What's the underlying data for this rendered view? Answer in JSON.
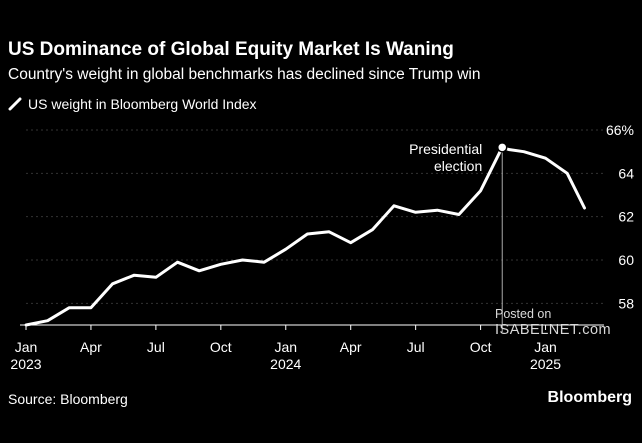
{
  "header": {
    "title": "US Dominance of Global Equity Market Is Waning",
    "subtitle": "Country's weight in global benchmarks has declined since Trump win"
  },
  "footer": {
    "source": "Source: Bloomberg",
    "brand": "Bloomberg"
  },
  "watermark": {
    "posted_on": "Posted on",
    "site": "ISABELNET.com"
  },
  "colors": {
    "background": "#000000",
    "line": "#ffffff",
    "grid": "#333333",
    "annotation_line": "#aaaaaa"
  },
  "chart_data": {
    "type": "line",
    "title": "US Dominance of Global Equity Market Is Waning",
    "subtitle": "Country's weight in global benchmarks has declined since Trump win",
    "xlabel": "",
    "ylabel": "",
    "ylim": [
      57,
      66
    ],
    "y_ticks": [
      58,
      60,
      62,
      64,
      66
    ],
    "y_tick_labels": [
      "58",
      "60",
      "62",
      "64",
      "66%"
    ],
    "grid": true,
    "legend": "top-left",
    "x_ticks": [
      {
        "m": 0,
        "label": "Jan",
        "sub": "2023"
      },
      {
        "m": 3,
        "label": "Apr",
        "sub": ""
      },
      {
        "m": 6,
        "label": "Jul",
        "sub": ""
      },
      {
        "m": 9,
        "label": "Oct",
        "sub": ""
      },
      {
        "m": 12,
        "label": "Jan",
        "sub": "2024"
      },
      {
        "m": 15,
        "label": "Apr",
        "sub": ""
      },
      {
        "m": 18,
        "label": "Jul",
        "sub": ""
      },
      {
        "m": 21,
        "label": "Oct",
        "sub": ""
      },
      {
        "m": 24,
        "label": "Jan",
        "sub": "2025"
      }
    ],
    "series": [
      {
        "name": "US weight in Bloomberg World Index",
        "x": [
          0,
          1,
          2,
          3,
          4,
          5,
          6,
          7,
          8,
          9,
          10,
          11,
          12,
          13,
          14,
          15,
          16,
          17,
          18,
          19,
          20,
          21,
          22,
          22.3,
          23,
          24,
          25,
          25.8
        ],
        "values": [
          57.0,
          57.2,
          57.8,
          57.8,
          58.9,
          59.3,
          59.2,
          59.9,
          59.5,
          59.8,
          60.0,
          59.9,
          60.5,
          61.2,
          61.3,
          60.8,
          61.4,
          62.5,
          62.2,
          62.3,
          62.1,
          63.2,
          65.2,
          65.1,
          65.0,
          64.7,
          64.0,
          62.4
        ]
      }
    ],
    "annotations": [
      {
        "x": 22,
        "y": 65.2,
        "text": [
          "Presidential",
          "election"
        ]
      }
    ]
  }
}
